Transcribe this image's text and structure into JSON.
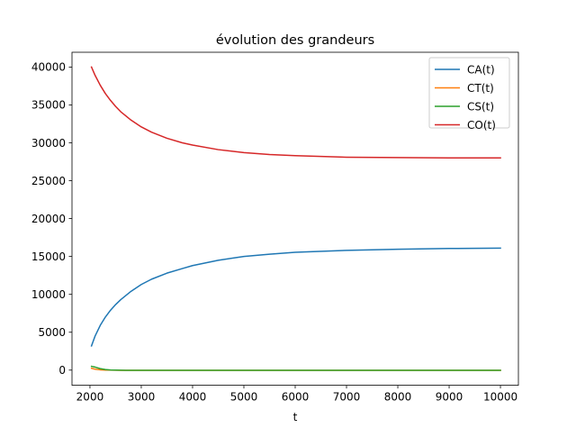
{
  "chart_data": {
    "type": "line",
    "title": "évolution des grandeurs",
    "xlabel": "t",
    "ylabel": "",
    "xlim": [
      1650,
      10350
    ],
    "ylim": [
      -2000,
      41950
    ],
    "xticks": [
      2000,
      3000,
      4000,
      5000,
      6000,
      7000,
      8000,
      9000,
      10000
    ],
    "yticks": [
      0,
      5000,
      10000,
      15000,
      20000,
      25000,
      30000,
      35000,
      40000
    ],
    "grid": false,
    "legend_position": "upper right",
    "series": [
      {
        "name": "CA(t)",
        "color": "#1f77b4",
        "x": [
          2030,
          2100,
          2200,
          2300,
          2400,
          2500,
          2600,
          2800,
          3000,
          3200,
          3500,
          3800,
          4000,
          4500,
          5000,
          5500,
          6000,
          7000,
          8000,
          9000,
          10000
        ],
        "values": [
          3200,
          4500,
          5900,
          7000,
          7900,
          8650,
          9300,
          10400,
          11300,
          12000,
          12800,
          13400,
          13800,
          14500,
          15000,
          15300,
          15550,
          15800,
          15950,
          16050,
          16100
        ]
      },
      {
        "name": "CT(t)",
        "color": "#ff7f0e",
        "x": [
          2030,
          2100,
          2200,
          2300,
          2400,
          2600,
          3000,
          4000,
          6000,
          8000,
          10000
        ],
        "values": [
          250,
          120,
          40,
          10,
          0,
          -20,
          -30,
          -30,
          -30,
          -30,
          -30
        ]
      },
      {
        "name": "CS(t)",
        "color": "#2ca02c",
        "x": [
          2030,
          2100,
          2200,
          2300,
          2400,
          2500,
          2700,
          3000,
          4000,
          6000,
          8000,
          10000
        ],
        "values": [
          500,
          400,
          200,
          80,
          20,
          0,
          -20,
          -30,
          -30,
          -30,
          -30,
          -30
        ]
      },
      {
        "name": "CO(t)",
        "color": "#d62728",
        "x": [
          2030,
          2100,
          2200,
          2300,
          2400,
          2500,
          2600,
          2800,
          3000,
          3200,
          3500,
          3800,
          4000,
          4500,
          5000,
          5500,
          6000,
          7000,
          8000,
          9000,
          10000
        ],
        "values": [
          40000,
          38900,
          37600,
          36500,
          35600,
          34800,
          34100,
          33000,
          32100,
          31400,
          30600,
          30000,
          29700,
          29100,
          28700,
          28450,
          28300,
          28100,
          28050,
          28000,
          28000
        ]
      }
    ]
  }
}
